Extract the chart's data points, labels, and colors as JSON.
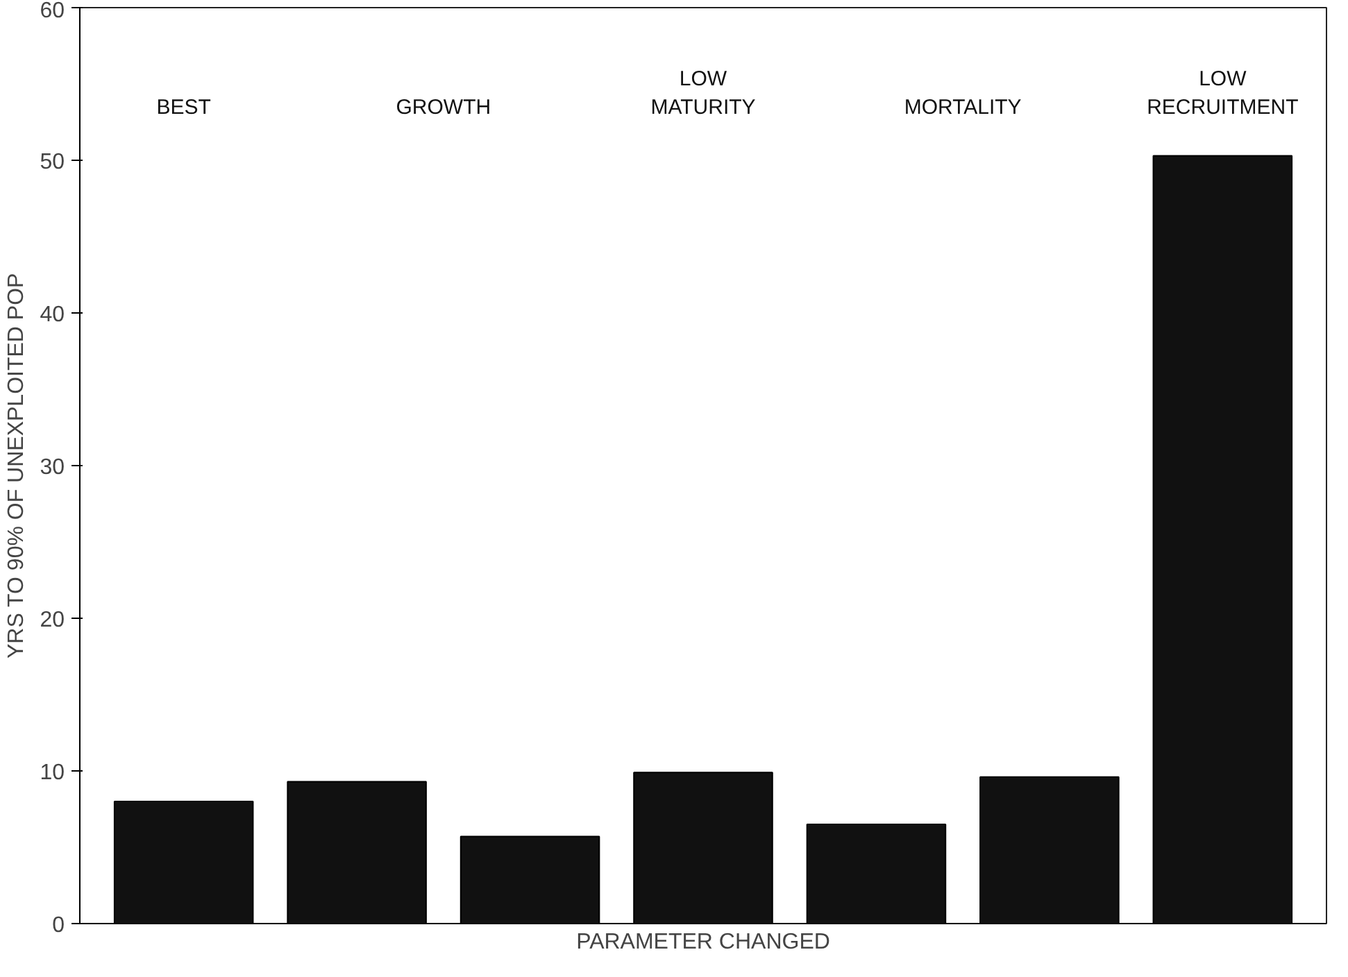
{
  "chart_data": {
    "type": "bar",
    "xlabel": "PARAMETER CHANGED",
    "ylabel": "YRS TO 90% OF UNEXPLOITED POP",
    "categories": [
      "BEST",
      "GROWTH",
      null,
      "LOW MATURITY",
      "MORTALITY",
      null,
      "LOW RECRUITMENT"
    ],
    "values": [
      8,
      9.3,
      5.7,
      9.9,
      6.5,
      9.6,
      50.3
    ],
    "color": "#111111",
    "ylim": [
      0,
      60
    ],
    "yticks": [
      0,
      10,
      20,
      30,
      40,
      50,
      60
    ],
    "grid": false,
    "tick_labels": "y"
  }
}
